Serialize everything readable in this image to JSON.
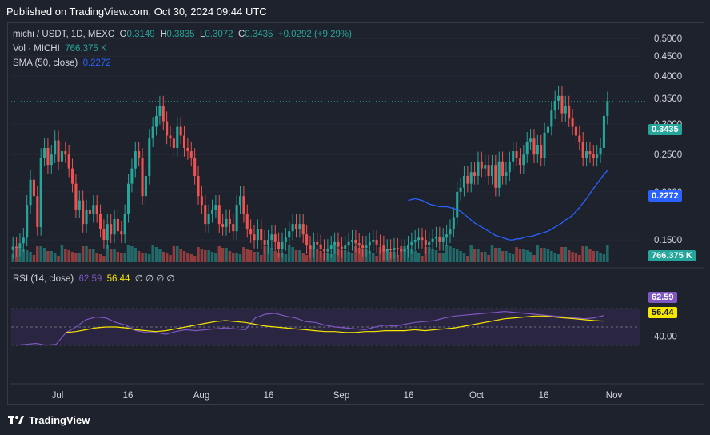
{
  "header": {
    "text": "Published on TradingView.com, Oct 30, 2024 09:44 UTC"
  },
  "legend": {
    "symbol": "michi / USDT, 1D, MEXC",
    "o_label": "O",
    "o": "0.3149",
    "h_label": "H",
    "h": "0.3835",
    "l_label": "L",
    "l": "0.3072",
    "c_label": "C",
    "c": "0.3435",
    "change": "+0.0292 (+9.29%)",
    "vol_label": "Vol · MICHI",
    "vol": "766.375 K",
    "sma_label": "SMA (50, close)",
    "sma": "0.2272",
    "rsi_label": "RSI (14, close)",
    "rsi": "62.59",
    "rsi_ma": "56.44",
    "rsi_extra": "∅ ∅ ∅ ∅"
  },
  "price_axis_ticks": [
    "0.5000",
    "0.4500",
    "0.4000",
    "0.3500",
    "0.3000",
    "0.2500",
    "0.2000",
    "0.1500"
  ],
  "rsi_axis_ticks": [
    "40.00"
  ],
  "badges": {
    "price": "0.3435",
    "sma": "0.2272",
    "volume": "766.375 K",
    "rsi": "62.59",
    "rsi_ma": "56.44"
  },
  "x_axis_ticks": [
    "Jul",
    "16",
    "Aug",
    "16",
    "Sep",
    "16",
    "Oct",
    "16",
    "Nov"
  ],
  "footer": {
    "brand": "TradingView"
  },
  "colors": {
    "background": "#1e222d",
    "up": "#26a69a",
    "down": "#ef5350",
    "sma": "#2962ff",
    "rsi": "#7e57c2",
    "rsi_ma": "#f7e600",
    "rsi_band": "#2a2540"
  },
  "chart_data": [
    {
      "type": "candlestick",
      "title": "michi / USDT, 1D, MEXC",
      "ylim": [
        0.13,
        0.52
      ],
      "y_scale": "log",
      "x_ticks": [
        "Jul",
        "16",
        "Aug",
        "16",
        "Sep",
        "16",
        "Oct",
        "16",
        "Nov"
      ],
      "close": [
        0.1441,
        0.143,
        0.147,
        0.152,
        0.185,
        0.215,
        0.195,
        0.162,
        0.245,
        0.26,
        0.235,
        0.25,
        0.272,
        0.24,
        0.255,
        0.25,
        0.23,
        0.21,
        0.18,
        0.19,
        0.165,
        0.18,
        0.175,
        0.185,
        0.175,
        0.16,
        0.15,
        0.165,
        0.155,
        0.17,
        0.158,
        0.155,
        0.175,
        0.21,
        0.23,
        0.255,
        0.245,
        0.195,
        0.22,
        0.275,
        0.295,
        0.315,
        0.335,
        0.305,
        0.28,
        0.275,
        0.26,
        0.295,
        0.28,
        0.26,
        0.255,
        0.245,
        0.22,
        0.195,
        0.185,
        0.165,
        0.175,
        0.18,
        0.185,
        0.165,
        0.162,
        0.17,
        0.165,
        0.158,
        0.185,
        0.195,
        0.175,
        0.16,
        0.155,
        0.15,
        0.16,
        0.15,
        0.145,
        0.15,
        0.155,
        0.148,
        0.142,
        0.148,
        0.152,
        0.158,
        0.165,
        0.16,
        0.165,
        0.155,
        0.145,
        0.142,
        0.148,
        0.146,
        0.142,
        0.14,
        0.142,
        0.145,
        0.148,
        0.144,
        0.142,
        0.145,
        0.148,
        0.15,
        0.147,
        0.145,
        0.143,
        0.145,
        0.148,
        0.15,
        0.146,
        0.145,
        0.14,
        0.142,
        0.141,
        0.143,
        0.142,
        0.14,
        0.142,
        0.145,
        0.148,
        0.15,
        0.152,
        0.15,
        0.145,
        0.148,
        0.151,
        0.153,
        0.148,
        0.152,
        0.155,
        0.16,
        0.172,
        0.2,
        0.205,
        0.22,
        0.21,
        0.225,
        0.22,
        0.24,
        0.23,
        0.235,
        0.22,
        0.235,
        0.205,
        0.24,
        0.22,
        0.225,
        0.24,
        0.255,
        0.245,
        0.235,
        0.25,
        0.27,
        0.275,
        0.25,
        0.265,
        0.245,
        0.285,
        0.295,
        0.325,
        0.345,
        0.355,
        0.32,
        0.335,
        0.31,
        0.295,
        0.28,
        0.27,
        0.245,
        0.255,
        0.25,
        0.245,
        0.25,
        0.26,
        0.315,
        0.3435
      ]
    },
    {
      "type": "line",
      "name": "SMA (50, close)",
      "values": [
        0.19,
        0.191,
        0.192,
        0.191,
        0.19,
        0.188,
        0.186,
        0.185,
        0.184,
        0.183,
        0.183,
        0.183,
        0.182,
        0.181,
        0.18,
        0.178,
        0.175,
        0.172,
        0.169,
        0.166,
        0.164,
        0.162,
        0.16,
        0.158,
        0.156,
        0.154,
        0.153,
        0.152,
        0.151,
        0.15,
        0.15,
        0.151,
        0.151,
        0.152,
        0.153,
        0.153,
        0.154,
        0.155,
        0.156,
        0.157,
        0.158,
        0.16,
        0.162,
        0.164,
        0.166,
        0.169,
        0.171,
        0.174,
        0.178,
        0.182,
        0.187,
        0.192,
        0.198,
        0.204,
        0.21,
        0.216,
        0.222,
        0.2272
      ]
    },
    {
      "type": "bar",
      "name": "Vol · MICHI",
      "last_value": "766.375 K"
    },
    {
      "type": "line",
      "name": "RSI (14, close)",
      "ylim": [
        0,
        100
      ],
      "bands": [
        30,
        70
      ],
      "values": [
        30,
        31,
        32,
        30,
        31,
        44,
        50,
        58,
        61,
        60,
        55,
        52,
        46,
        44,
        44,
        42,
        45,
        47,
        46,
        47,
        48,
        49,
        48,
        47,
        60,
        64,
        65,
        62,
        60,
        56,
        55,
        52,
        50,
        49,
        48,
        47,
        50,
        52,
        51,
        53,
        55,
        56,
        57,
        60,
        62,
        63,
        64,
        65,
        66,
        67,
        66,
        65,
        64,
        63,
        62,
        61,
        60,
        59,
        60,
        62.59
      ],
      "ma_values": [
        44,
        45,
        47,
        49,
        50,
        50,
        49,
        47,
        46,
        45,
        46,
        48,
        50,
        52,
        54,
        56,
        57,
        56,
        55,
        53,
        51,
        50,
        49,
        48,
        47,
        46,
        45,
        45,
        44,
        44,
        45,
        45,
        46,
        46,
        46,
        47,
        46,
        47,
        48,
        49,
        51,
        53,
        55,
        57,
        59,
        60,
        61,
        62,
        62,
        61,
        60,
        59,
        58,
        57,
        56.44
      ]
    }
  ]
}
